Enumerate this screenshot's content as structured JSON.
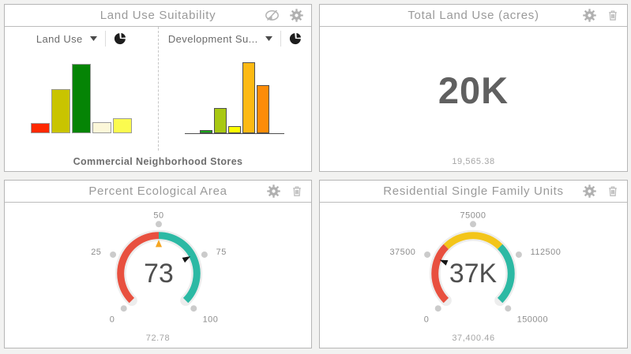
{
  "panels": {
    "land_use_suitability": {
      "title": "Land Use Suitability",
      "header_icons": [
        "visibility-toggle-icon",
        "gear-icon"
      ],
      "left_chart": {
        "dropdown_label": "Land Use",
        "dropdown_icons": [
          "chevron-down-icon",
          "pie-chart-icon"
        ]
      },
      "right_chart": {
        "dropdown_label": "Development Su...",
        "dropdown_icons": [
          "chevron-down-icon",
          "pie-chart-icon"
        ]
      },
      "footer_label": "Commercial Neighborhood Stores"
    },
    "total_land_use": {
      "title": "Total Land Use (acres)",
      "header_icons": [
        "gear-icon",
        "trash-icon"
      ],
      "value_display": "20K",
      "footnote": "19,565.38"
    },
    "percent_ecological": {
      "title": "Percent Ecological Area",
      "header_icons": [
        "gear-icon",
        "trash-icon"
      ],
      "footnote": "72.78"
    },
    "residential_units": {
      "title": "Residential Single Family Units",
      "header_icons": [
        "gear-icon",
        "trash-icon"
      ],
      "footnote": "37,400.46"
    }
  },
  "chart_data": [
    {
      "type": "bar",
      "title": "Land Use",
      "values": [
        13,
        56,
        88,
        14,
        19
      ],
      "colors": [
        "#fe2900",
        "#c9c400",
        "#058405",
        "#fcf7d9",
        "#fbfb4f"
      ],
      "xlabel": "",
      "ylabel": "",
      "axis_labels_shown": false
    },
    {
      "type": "bar",
      "title": "Development Suitability",
      "values": [
        4,
        32,
        9,
        90,
        61
      ],
      "colors": [
        "#1ba51b",
        "#a8c813",
        "#fdfd00",
        "#fdb913",
        "#fd8c08"
      ],
      "xlabel": "",
      "ylabel": "",
      "axis_labels_shown": false,
      "baseline": true
    },
    {
      "type": "gauge",
      "title": "Percent Ecological Area",
      "min": 0,
      "max": 100,
      "ticks": [
        0,
        25,
        50,
        75,
        100
      ],
      "value": 72.78,
      "display": "73",
      "segments": [
        {
          "from": 0,
          "to": 50,
          "color": "#e8503f"
        },
        {
          "from": 50,
          "to": 100,
          "color": "#2cb9a4"
        }
      ],
      "threshold": 50,
      "threshold_color": "#f5a623"
    },
    {
      "type": "gauge",
      "title": "Residential Single Family Units",
      "min": 0,
      "max": 150000,
      "ticks": [
        0,
        37500,
        75000,
        112500,
        150000
      ],
      "value": 37400.46,
      "display": "37K",
      "segments": [
        {
          "from": 0,
          "to": 50000,
          "color": "#e8503f"
        },
        {
          "from": 50000,
          "to": 100000,
          "color": "#f3c51a"
        },
        {
          "from": 100000,
          "to": 150000,
          "color": "#2cb9a4"
        }
      ]
    }
  ],
  "colors": {
    "gauge_red": "#e8503f",
    "gauge_teal": "#2cb9a4",
    "gauge_yellow": "#f3c51a",
    "threshold_orange": "#f5a623",
    "tick_dot_gray": "#cbcbcb"
  }
}
